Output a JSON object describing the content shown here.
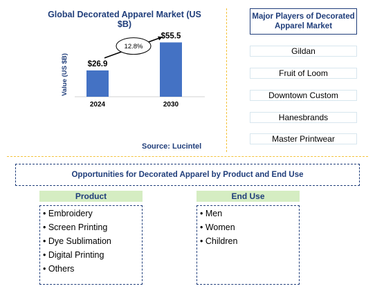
{
  "chart_data": {
    "type": "bar",
    "title": "Global Decorated Apparel Market (US $B)",
    "ylabel": "Value (US $B)",
    "categories": [
      "2024",
      "2030"
    ],
    "values": [
      26.9,
      55.5
    ],
    "value_labels": [
      "$26.9",
      "$55.5"
    ],
    "growth_label": "12.8%",
    "ylim": [
      0,
      60
    ],
    "bar_color": "#4472c4",
    "grid": false
  },
  "source": "Source: Lucintel",
  "players": {
    "title": "Major Players of Decorated Apparel Market",
    "items": [
      "Gildan",
      "Fruit of Loom",
      "Downtown Custom",
      "Hanesbrands",
      "Master Printwear"
    ]
  },
  "opportunities": {
    "title": "Opportunities for Decorated Apparel by Product and End Use",
    "product": {
      "header": "Product",
      "items": [
        "• Embroidery",
        "• Screen Printing",
        "• Dye Sublimation",
        "• Digital Printing",
        "• Others"
      ]
    },
    "end_use": {
      "header": "End Use",
      "items": [
        "• Men",
        "• Women",
        "• Children"
      ]
    }
  },
  "colors": {
    "title_blue": "#1f3d7a",
    "divider_yellow": "#f4c23a",
    "header_green": "#d5edc2"
  }
}
